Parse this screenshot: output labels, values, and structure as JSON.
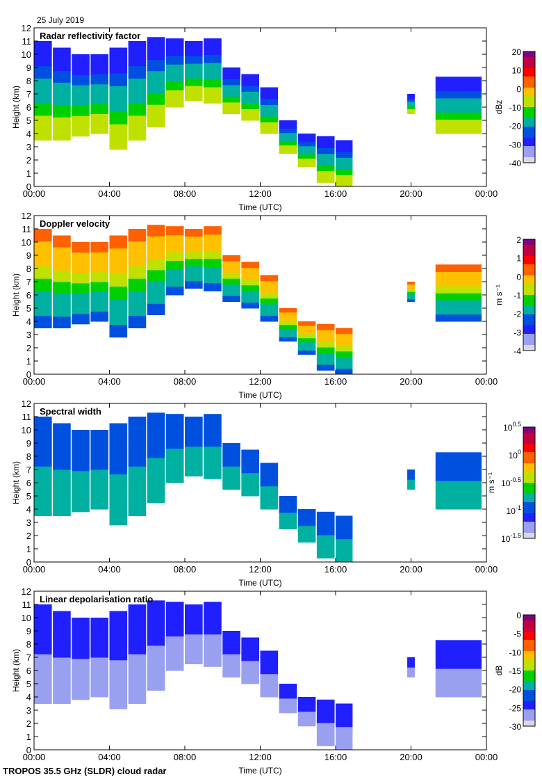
{
  "date": "25 July 2019",
  "footer": "TROPOS 35.5 GHz (SLDR) cloud radar",
  "chart_data": [
    {
      "type": "heatmap",
      "title": "Radar reflectivity factor",
      "xlabel": "Time (UTC)",
      "ylabel": "Height (km)",
      "xlim": [
        0,
        24
      ],
      "ylim": [
        0,
        12
      ],
      "xticks": [
        "00:00",
        "04:00",
        "08:00",
        "12:00",
        "16:00",
        "20:00",
        "00:00"
      ],
      "yticks": [
        "0",
        "1",
        "2",
        "3",
        "4",
        "5",
        "6",
        "7",
        "8",
        "9",
        "10",
        "11",
        "12"
      ],
      "colorbar": {
        "label": "dBz",
        "range": [
          -40,
          20
        ],
        "ticks": [
          "20",
          "10",
          "0",
          "-10",
          "-20",
          "-30",
          "-40"
        ]
      },
      "base_value": -5,
      "top_value": -30
    },
    {
      "type": "heatmap",
      "title": "Doppler velocity",
      "xlabel": "Time (UTC)",
      "ylabel": "Height (km)",
      "xlim": [
        0,
        24
      ],
      "ylim": [
        0,
        12
      ],
      "xticks": [
        "00:00",
        "04:00",
        "08:00",
        "12:00",
        "16:00",
        "20:00",
        "00:00"
      ],
      "yticks": [
        "0",
        "1",
        "2",
        "3",
        "4",
        "5",
        "6",
        "7",
        "8",
        "9",
        "10",
        "11",
        "12"
      ],
      "colorbar": {
        "label": "m s⁻¹",
        "range": [
          -4,
          2
        ],
        "ticks": [
          "2",
          "1",
          "0",
          "-1",
          "-2",
          "-3",
          "-4"
        ]
      },
      "base_value": -2.5,
      "top_value": 0.5
    },
    {
      "type": "heatmap",
      "title": "Spectral width",
      "xlabel": "Time (UTC)",
      "ylabel": "Height (km)",
      "xlim": [
        0,
        24
      ],
      "ylim": [
        0,
        12
      ],
      "xticks": [
        "00:00",
        "04:00",
        "08:00",
        "12:00",
        "16:00",
        "20:00",
        "00:00"
      ],
      "yticks": [
        "0",
        "1",
        "2",
        "3",
        "4",
        "5",
        "6",
        "7",
        "8",
        "9",
        "10",
        "11",
        "12"
      ],
      "colorbar": {
        "label": "m s⁻¹",
        "range": [
          -1.5,
          0.5
        ],
        "scale": "log10",
        "ticks": [
          "10^0.5",
          "10^0",
          "10^-0.5",
          "10^-1",
          "10^-1.5"
        ]
      },
      "base_value": -0.7,
      "top_value": -1.0
    },
    {
      "type": "heatmap",
      "title": "Linear depolarisation ratio",
      "xlabel": "Time (UTC)",
      "ylabel": "Height (km)",
      "xlim": [
        0,
        24
      ],
      "ylim": [
        0,
        12
      ],
      "xticks": [
        "00:00",
        "04:00",
        "08:00",
        "12:00",
        "16:00",
        "20:00",
        "00:00"
      ],
      "yticks": [
        "0",
        "1",
        "2",
        "3",
        "4",
        "5",
        "6",
        "7",
        "8",
        "9",
        "10",
        "11",
        "12"
      ],
      "colorbar": {
        "label": "dB",
        "range": [
          -30,
          0
        ],
        "ticks": [
          "0",
          "-5",
          "-10",
          "-15",
          "-20",
          "-25",
          "-30"
        ]
      },
      "base_value": -28,
      "top_value": -24,
      "lower_extent_km": 3
    }
  ],
  "cloud_extent": [
    {
      "t0": 0,
      "t1": 1,
      "base": 3.5,
      "top": 11
    },
    {
      "t0": 1,
      "t1": 2,
      "base": 3.5,
      "top": 10.5
    },
    {
      "t0": 2,
      "t1": 3,
      "base": 3.8,
      "top": 10
    },
    {
      "t0": 3,
      "t1": 4,
      "base": 4,
      "top": 10
    },
    {
      "t0": 4,
      "t1": 5,
      "base": 2.8,
      "top": 10.5
    },
    {
      "t0": 5,
      "t1": 6,
      "base": 3.5,
      "top": 11
    },
    {
      "t0": 6,
      "t1": 7,
      "base": 4.5,
      "top": 11.3
    },
    {
      "t0": 7,
      "t1": 8,
      "base": 6,
      "top": 11.2
    },
    {
      "t0": 8,
      "t1": 9,
      "base": 6.5,
      "top": 11
    },
    {
      "t0": 9,
      "t1": 10,
      "base": 6.3,
      "top": 11.2
    },
    {
      "t0": 10,
      "t1": 11,
      "base": 5.5,
      "top": 9
    },
    {
      "t0": 11,
      "t1": 12,
      "base": 5,
      "top": 8.5
    },
    {
      "t0": 12,
      "t1": 13,
      "base": 4,
      "top": 7.5
    },
    {
      "t0": 13,
      "t1": 14,
      "base": 2.5,
      "top": 5
    },
    {
      "t0": 14,
      "t1": 15,
      "base": 1.5,
      "top": 4
    },
    {
      "t0": 15,
      "t1": 16,
      "base": 0.3,
      "top": 3.8
    },
    {
      "t0": 16,
      "t1": 16.9,
      "base": 0,
      "top": 3.5
    },
    {
      "t0": 19.8,
      "t1": 20.2,
      "base": 5.5,
      "top": 7
    },
    {
      "t0": 21.3,
      "t1": 23.8,
      "base": 4,
      "top": 8.3
    }
  ]
}
